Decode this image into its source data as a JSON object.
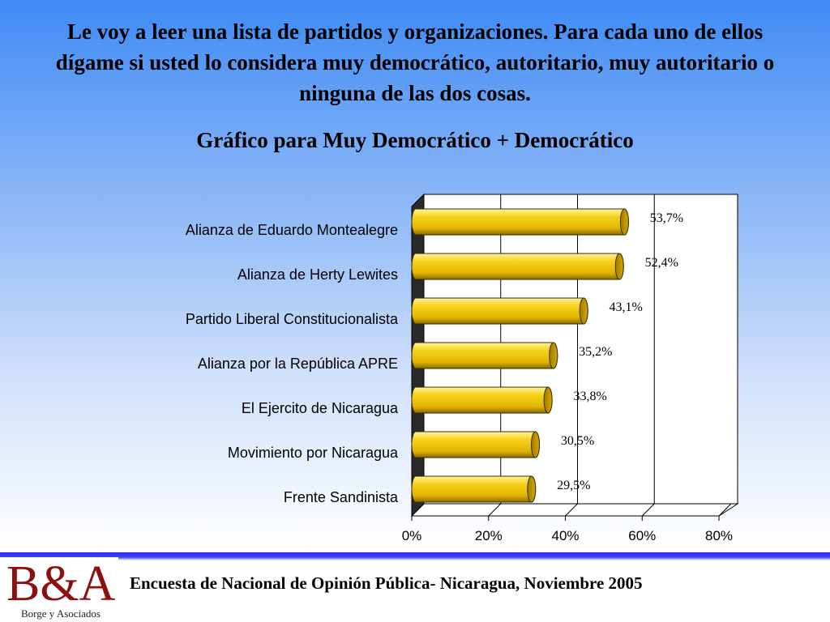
{
  "header": {
    "title": "Le voy a leer una lista de partidos y organizaciones. Para cada uno de ellos dígame si usted lo considera muy democrático, autoritario, muy autoritario o ninguna de las dos cosas.",
    "subtitle": "Gráfico  para Muy Democrático + Democrático"
  },
  "chart_data": {
    "type": "bar",
    "orientation": "horizontal",
    "categories": [
      "Alianza de Eduardo Montealegre",
      "Alianza de Herty Lewites",
      "Partido Liberal Constitucionalista",
      "Alianza por la República APRE",
      "El Ejercito de Nicaragua",
      "Movimiento por Nicaragua",
      "Frente Sandinista"
    ],
    "values": [
      53.7,
      52.4,
      43.1,
      35.2,
      33.8,
      30.5,
      29.5
    ],
    "data_labels": [
      "53,7%",
      "52,4%",
      "43,1%",
      "35,2%",
      "33,8%",
      "30,5%",
      "29,5%"
    ],
    "xlim": [
      0,
      80
    ],
    "x_ticks": [
      "0%",
      "20%",
      "40%",
      "60%",
      "80%"
    ],
    "grid": true,
    "bar_color": "#f2c400"
  },
  "footer": {
    "logo": "B&A",
    "logo_sub": "Borge y Asociados",
    "text": "Encuesta de Nacional de Opinión Pública- Nicaragua, Noviembre 2005"
  }
}
